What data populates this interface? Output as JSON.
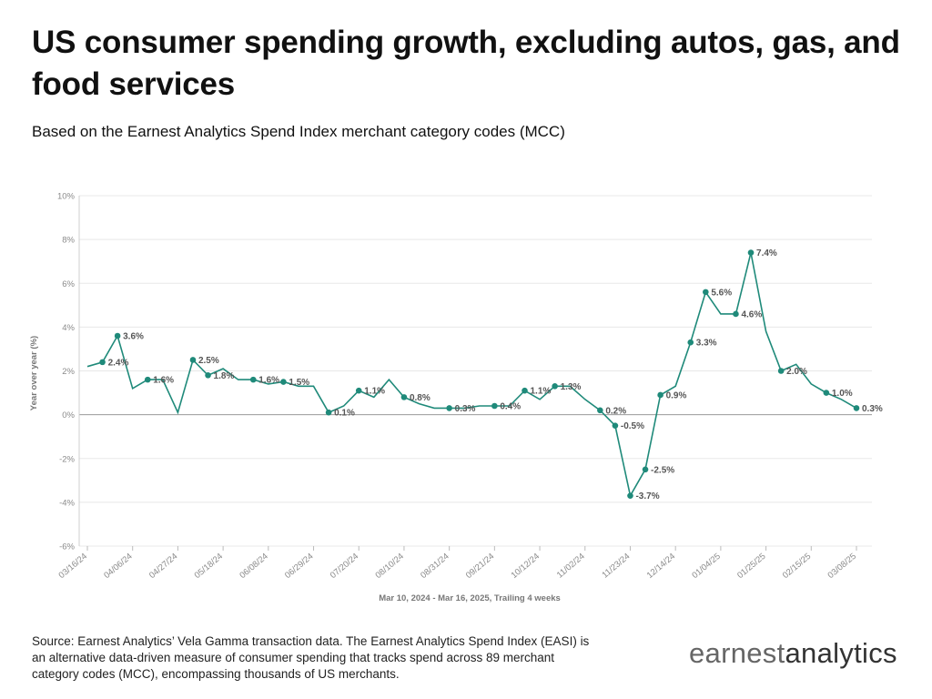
{
  "header": {
    "title": "US consumer spending growth, excluding autos, gas, and food services",
    "subtitle": "Based on the Earnest Analytics Spend Index merchant category codes (MCC)"
  },
  "footer": {
    "source": "Source: Earnest Analytics’ Vela Gamma transaction data. The Earnest Analytics Spend Index (EASI) is an alternative data-driven measure of consumer spending that tracks spend across 89 merchant category codes (MCC), encompassing thousands of US merchants.",
    "logo_part1": "earnest",
    "logo_part2": "analytics"
  },
  "colors": {
    "line": "#1f8a7a",
    "grid": "#e8e8e8",
    "zero": "#999999"
  },
  "chart_data": {
    "type": "line",
    "title": "US consumer spending growth, excluding autos, gas, and food services",
    "subtitle": "Based on the Earnest Analytics Spend Index merchant category codes (MCC)",
    "xlabel": "Mar 10, 2024 - Mar 16, 2025, Trailing 4 weeks",
    "ylabel": "Year over year (%)",
    "ylim": [
      -6,
      10
    ],
    "yticks": [
      10,
      8,
      6,
      4,
      2,
      0,
      -2,
      -4,
      -6
    ],
    "ytick_labels": [
      "10%",
      "8%",
      "6%",
      "4%",
      "2%",
      "0%",
      "-2%",
      "-4%",
      "-6%"
    ],
    "xtick_labels": [
      "03/16/24",
      "04/06/24",
      "04/27/24",
      "05/18/24",
      "06/08/24",
      "06/29/24",
      "07/20/24",
      "08/10/24",
      "08/31/24",
      "09/21/24",
      "10/12/24",
      "11/02/24",
      "11/23/24",
      "12/14/24",
      "01/04/25",
      "01/25/25",
      "02/15/25",
      "03/08/25"
    ],
    "xtick_week_index": [
      0,
      3,
      6,
      9,
      12,
      15,
      18,
      21,
      24,
      27,
      30,
      33,
      36,
      39,
      42,
      45,
      48,
      51
    ],
    "grid": true,
    "series": [
      {
        "values": [
          2.2,
          2.4,
          3.6,
          1.2,
          1.6,
          1.6,
          0.1,
          2.5,
          1.8,
          2.1,
          1.6,
          1.6,
          1.4,
          1.5,
          1.3,
          1.3,
          0.1,
          0.4,
          1.1,
          0.8,
          1.6,
          0.8,
          0.5,
          0.3,
          0.3,
          0.3,
          0.4,
          0.4,
          0.4,
          1.1,
          0.7,
          1.3,
          1.3,
          0.7,
          0.2,
          -0.5,
          -3.7,
          -2.5,
          0.9,
          1.3,
          3.3,
          5.6,
          4.6,
          4.6,
          7.4,
          3.8,
          2.0,
          2.3,
          1.4,
          1.0,
          0.7,
          0.3
        ],
        "markers": [
          {
            "i": 1,
            "label": "2.4%"
          },
          {
            "i": 2,
            "label": "3.6%"
          },
          {
            "i": 4,
            "label": "1.6%"
          },
          {
            "i": 7,
            "label": "2.5%"
          },
          {
            "i": 8,
            "label": "1.8%"
          },
          {
            "i": 11,
            "label": "1.6%"
          },
          {
            "i": 13,
            "label": "1.5%"
          },
          {
            "i": 16,
            "label": "0.1%"
          },
          {
            "i": 18,
            "label": "1.1%"
          },
          {
            "i": 21,
            "label": "0.8%"
          },
          {
            "i": 24,
            "label": "0.3%"
          },
          {
            "i": 27,
            "label": "0.4%"
          },
          {
            "i": 29,
            "label": "1.1%"
          },
          {
            "i": 31,
            "label": "1.3%"
          },
          {
            "i": 34,
            "label": "0.2%"
          },
          {
            "i": 35,
            "label": "-0.5%"
          },
          {
            "i": 36,
            "label": "-3.7%"
          },
          {
            "i": 37,
            "label": "-2.5%"
          },
          {
            "i": 38,
            "label": "0.9%"
          },
          {
            "i": 40,
            "label": "3.3%"
          },
          {
            "i": 41,
            "label": "5.6%"
          },
          {
            "i": 43,
            "label": "4.6%"
          },
          {
            "i": 44,
            "label": "7.4%"
          },
          {
            "i": 46,
            "label": "2.0%"
          },
          {
            "i": 49,
            "label": "1.0%"
          },
          {
            "i": 51,
            "label": "0.3%"
          }
        ]
      }
    ]
  }
}
